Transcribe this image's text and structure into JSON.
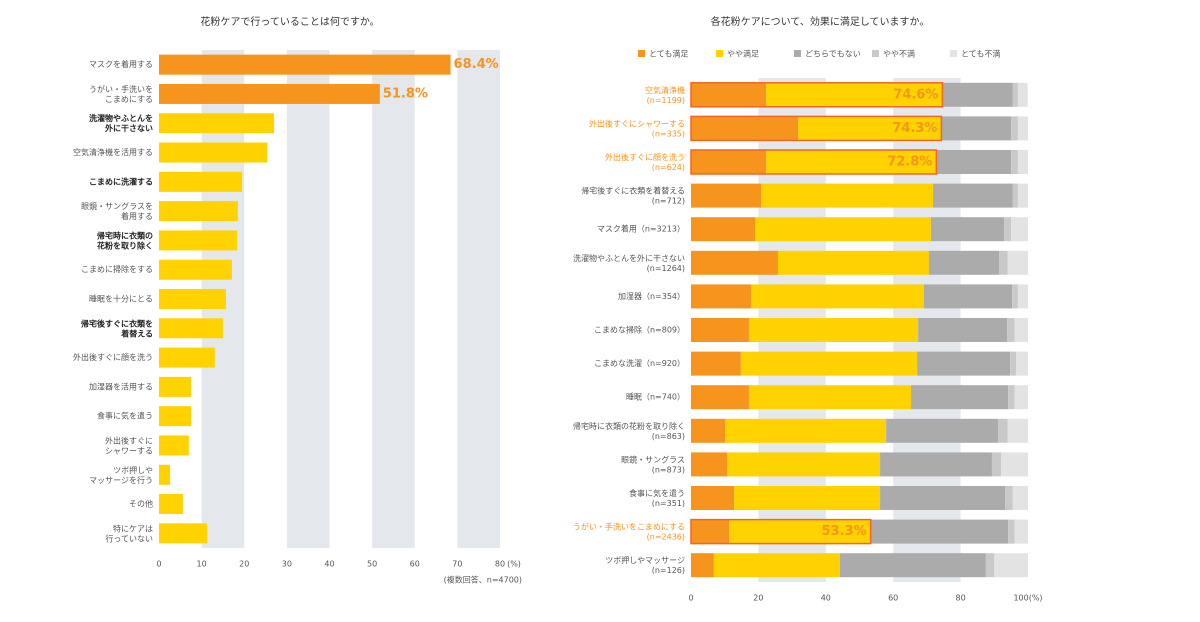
{
  "chart_data": [
    {
      "type": "hbar",
      "title": "花粉ケアで行っていることは何ですか。",
      "note": "(複数回答、n=4700)",
      "x_unit": "(%)",
      "categories": [
        "マスクを着用する",
        "うがい・手洗いを\nこまめにする",
        "洗濯物やふとんを\n外に干さない",
        "空気清浄機を活用する",
        "こまめに洗濯する",
        "眼鏡・サングラスを\n着用する",
        "帰宅時に衣類の\n花粉を取り除く",
        "こまめに掃除をする",
        "睡眠を十分にとる",
        "帰宅後すぐに衣類を\n着替える",
        "外出後すぐに顔を洗う",
        "加湿器を活用する",
        "食事に気を遣う",
        "外出後すぐに\nシャワーする",
        "ツボ押しや\nマッサージを行う",
        "その他",
        "特にケアは\n行っていない"
      ],
      "bold_categories": [
        false,
        false,
        true,
        false,
        true,
        false,
        true,
        false,
        false,
        true,
        false,
        false,
        false,
        false,
        false,
        false,
        false
      ],
      "values": [
        68.4,
        51.8,
        27,
        25.4,
        19.5,
        18.5,
        18.3,
        17.1,
        15.7,
        15,
        13.1,
        7.5,
        7.5,
        7,
        2.6,
        5.6,
        11.3
      ],
      "value_labels": [
        "68.4%",
        "51.8%",
        null,
        null,
        null,
        null,
        null,
        null,
        null,
        null,
        null,
        null,
        null,
        null,
        null,
        null,
        null
      ],
      "colors": [
        "#f7941d",
        "#f7941d",
        "#ffd200",
        "#ffd200",
        "#ffd200",
        "#ffd200",
        "#ffd200",
        "#ffd200",
        "#ffd200",
        "#ffd200",
        "#ffd200",
        "#ffd200",
        "#ffd200",
        "#ffd200",
        "#ffd200",
        "#ffd200",
        "#ffd200"
      ],
      "xlim": [
        0,
        80
      ],
      "xticks": [
        0,
        10,
        20,
        30,
        40,
        50,
        60,
        70,
        80
      ]
    },
    {
      "type": "stacked_hbar",
      "title": "各花粉ケアについて、効果に満足していますか。",
      "categories": [
        "空気清浄機\n(n=1199)",
        "外出後すぐにシャワーする\n(n=335)",
        "外出後すぐに顔を洗う\n(n=624)",
        "帰宅後すぐに衣類を着替える\n(n=712)",
        "マスク着用（n=3213）",
        "洗濯物やふとんを外に干さない\n(n=1264)",
        "加湿器（n=354）",
        "こまめな掃除（n=809）",
        "こまめな洗濯（n=920）",
        "睡眠（n=740）",
        "帰宅時に衣類の花粉を取り除く\n(n=863)",
        "眼鏡・サングラス\n(n=873)",
        "食事に気を遣う\n(n=351)",
        "うがい・手洗いをこまめにする\n(n=2436)",
        "ツボ押しやマッサージ\n(n=126)"
      ],
      "series": [
        {
          "name": "とても満足",
          "color": "#f7941d",
          "values": [
            22.3,
            31.8,
            22.3,
            20.8,
            19,
            25.8,
            17.8,
            17.2,
            14.8,
            17.2,
            10.1,
            10.7,
            12.8,
            11.3,
            6.8
          ]
        },
        {
          "name": "やや満足",
          "color": "#ffd200",
          "values": [
            52.3,
            42.5,
            50.5,
            51,
            52.2,
            44.8,
            51.3,
            50.2,
            52.3,
            48.1,
            47.8,
            45.4,
            43.3,
            42,
            37.4
          ]
        },
        {
          "name": "どちらでもない",
          "color": "#ababab",
          "values": [
            20.9,
            20.7,
            22.2,
            23.7,
            21.7,
            20.8,
            26.2,
            26.4,
            27.6,
            28.8,
            33.2,
            33.2,
            37.1,
            40.8,
            43.3
          ]
        },
        {
          "name": "やや不満",
          "color": "#c9c9c9",
          "values": [
            1.5,
            2,
            2,
            1.5,
            2.1,
            2.6,
            1.7,
            2.2,
            1.8,
            1.9,
            2.9,
            2.7,
            2.3,
            1.9,
            2.5
          ]
        },
        {
          "name": "とても不満",
          "color": "#e3e3e3",
          "values": [
            2.9,
            3,
            3,
            3,
            5,
            6,
            3,
            4,
            3.5,
            4,
            6,
            8,
            4.5,
            4,
            10
          ]
        }
      ],
      "highlight_values": [
        74.6,
        74.3,
        72.8,
        null,
        null,
        null,
        null,
        null,
        null,
        null,
        null,
        null,
        null,
        53.3,
        null
      ],
      "highlight_labels": [
        "74.6%",
        "74.3%",
        "72.8%",
        null,
        null,
        null,
        null,
        null,
        null,
        null,
        null,
        null,
        null,
        "53.3%",
        null
      ],
      "xlim": [
        0,
        100
      ],
      "xticks": [
        0,
        20,
        40,
        60,
        80,
        {
          "value": 100,
          "label": "100(%)"
        }
      ]
    }
  ]
}
